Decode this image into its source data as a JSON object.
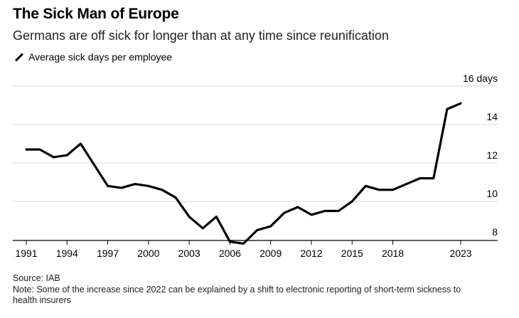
{
  "header": {
    "title": "The Sick Man of Europe",
    "subtitle": "Germans are off sick for longer than at any time since reunification",
    "legend_label": "Average sick days per employee"
  },
  "footer": {
    "source": "Source: IAB",
    "note": "Note: Some of the increase since 2022 can be explained by a shift to electronic reporting of short-term sickness to health insurers"
  },
  "chart_data": {
    "type": "line",
    "title": "The Sick Man of Europe",
    "subtitle": "Germans are off sick for longer than at any time since reunification",
    "xlabel": "",
    "ylabel": "",
    "x_ticks": [
      1991,
      1994,
      1997,
      2000,
      2003,
      2006,
      2009,
      2012,
      2015,
      2018,
      2023
    ],
    "y_ticks": [
      {
        "value": 8,
        "label": "8"
      },
      {
        "value": 10,
        "label": "10"
      },
      {
        "value": 12,
        "label": "12"
      },
      {
        "value": 14,
        "label": "14"
      },
      {
        "value": 16,
        "label": "16 days"
      }
    ],
    "xlim": [
      1990,
      2026
    ],
    "ylim": [
      7.6,
      16
    ],
    "grid": true,
    "line_color": "#000000",
    "series": [
      {
        "name": "Average sick days per employee",
        "x": [
          1991,
          1992,
          1993,
          1994,
          1995,
          1996,
          1997,
          1998,
          1999,
          2000,
          2001,
          2002,
          2003,
          2004,
          2005,
          2006,
          2007,
          2008,
          2009,
          2010,
          2011,
          2012,
          2013,
          2014,
          2015,
          2016,
          2017,
          2018,
          2019,
          2020,
          2021,
          2022,
          2023
        ],
        "values": [
          12.7,
          12.7,
          12.3,
          12.4,
          13.0,
          11.9,
          10.8,
          10.7,
          10.9,
          10.8,
          10.6,
          10.2,
          9.2,
          8.6,
          9.2,
          7.9,
          7.8,
          8.5,
          8.7,
          9.4,
          9.7,
          9.3,
          9.5,
          9.5,
          10.0,
          10.8,
          10.6,
          10.6,
          10.9,
          11.2,
          11.2,
          14.8,
          15.1
        ]
      }
    ]
  }
}
